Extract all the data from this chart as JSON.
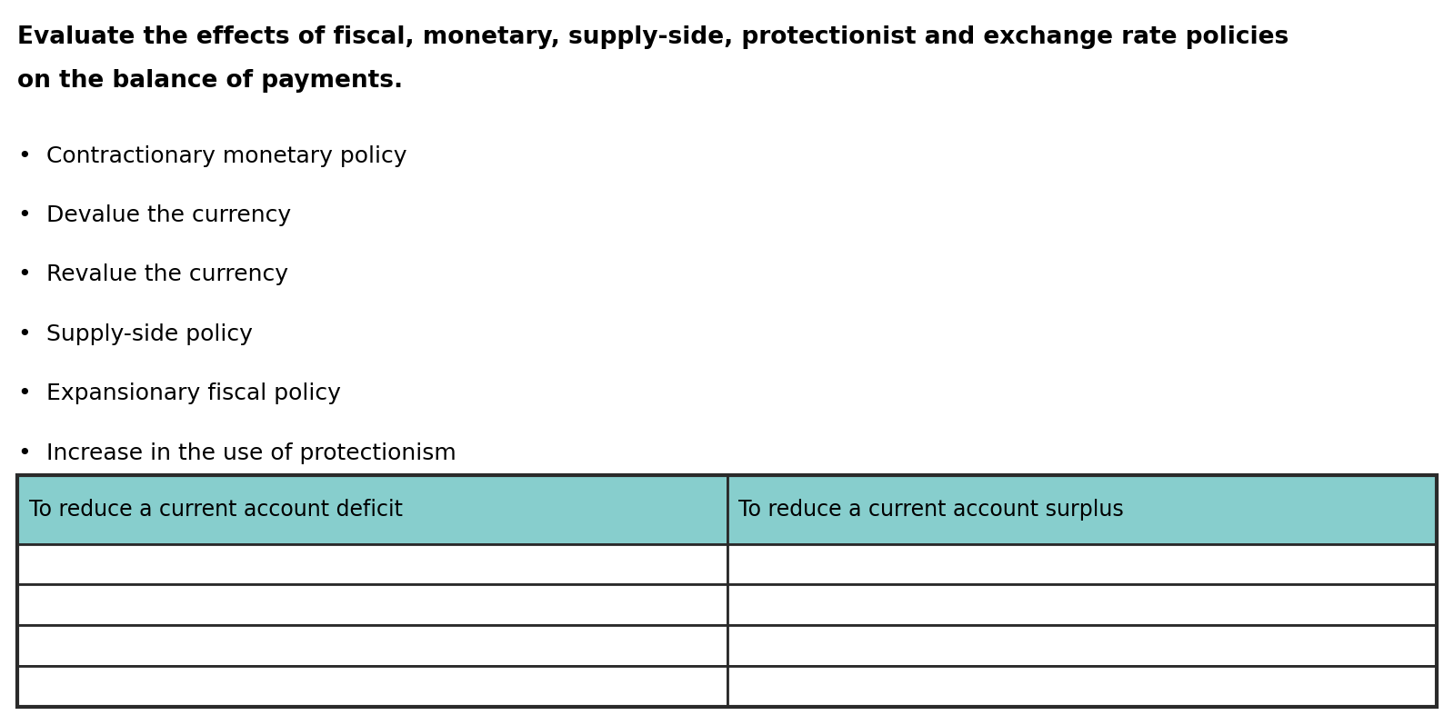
{
  "title_line1": "Evaluate the effects of fiscal, monetary, supply-side, protectionist and exchange rate policies",
  "title_line2": "on the balance of payments.",
  "bullet_points": [
    "Contractionary monetary policy",
    "Devalue the currency",
    "Revalue the currency",
    "Supply-side policy",
    "Expansionary fiscal policy",
    "Increase in the use of protectionism"
  ],
  "table_header": [
    "To reduce a current account deficit",
    "To reduce a current account surplus"
  ],
  "table_rows": 4,
  "header_bg_color": "#87CECD",
  "table_border_color": "#2A2A2A",
  "bg_color": "#ffffff",
  "title_fontsize": 19,
  "bullet_fontsize": 18,
  "table_fontsize": 17
}
